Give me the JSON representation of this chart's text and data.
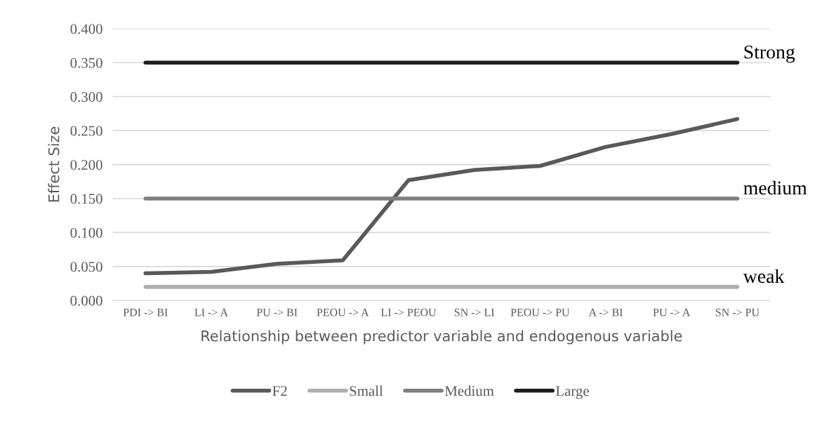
{
  "chart_data": {
    "type": "line",
    "xlabel": "Relationship between predictor variable and endogenous variable",
    "ylabel": "Effect Size",
    "categories": [
      "PDI -> BI",
      "LI -> A",
      "PU -> BI",
      "PEOU -> A",
      "LI -> PEOU",
      "SN -> LI",
      "PEOU -> PU",
      "A -> BI",
      "PU -> A",
      "SN -> PU"
    ],
    "series": [
      {
        "name": "F2",
        "color": "#595959",
        "values": [
          0.04,
          0.042,
          0.054,
          0.059,
          0.177,
          0.192,
          0.198,
          0.226,
          0.245,
          0.267
        ]
      },
      {
        "name": "Small",
        "color": "#afafaf",
        "values": [
          0.02,
          0.02,
          0.02,
          0.02,
          0.02,
          0.02,
          0.02,
          0.02,
          0.02,
          0.02
        ]
      },
      {
        "name": "Medium",
        "color": "#7f7f7f",
        "values": [
          0.15,
          0.15,
          0.15,
          0.15,
          0.15,
          0.15,
          0.15,
          0.15,
          0.15,
          0.15
        ]
      },
      {
        "name": "Large",
        "color": "#1e1e1e",
        "values": [
          0.35,
          0.35,
          0.35,
          0.35,
          0.35,
          0.35,
          0.35,
          0.35,
          0.35,
          0.35
        ]
      }
    ],
    "annotations": [
      {
        "text": "Strong",
        "x": "SN -> PU",
        "y": 0.35
      },
      {
        "text": "medium",
        "x": "SN -> PU",
        "y": 0.15
      },
      {
        "text": "weak",
        "x": "SN -> PU",
        "y": 0.02
      }
    ],
    "ylim": [
      0,
      0.4
    ],
    "yticks": [
      {
        "value": 0,
        "label": "0.000"
      },
      {
        "value": 0.05,
        "label": "0.050"
      },
      {
        "value": 0.1,
        "label": "0.100"
      },
      {
        "value": 0.15,
        "label": "0.150"
      },
      {
        "value": 0.2,
        "label": "0.200"
      },
      {
        "value": 0.25,
        "label": "0.250"
      },
      {
        "value": 0.3,
        "label": "0.300"
      },
      {
        "value": 0.35,
        "label": "0.350"
      },
      {
        "value": 0.4,
        "label": "0.400"
      }
    ],
    "grid": "y",
    "legend": "bottom",
    "marker": "none",
    "line_style": "solid"
  }
}
